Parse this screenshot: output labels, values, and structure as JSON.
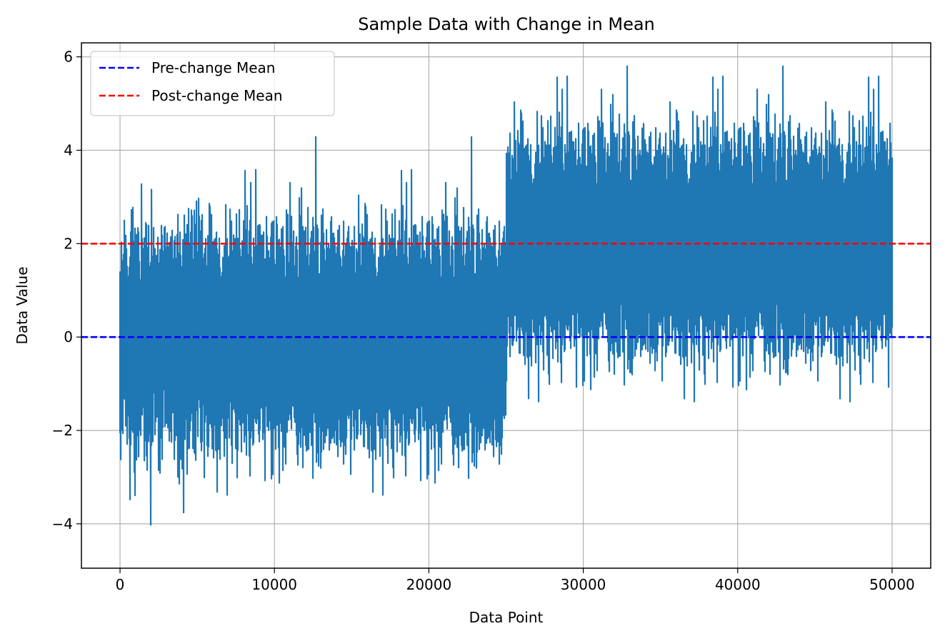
{
  "chart_data": {
    "type": "line",
    "title": "Sample Data with Change in Mean",
    "xlabel": "Data Point",
    "ylabel": "Data Value",
    "xlim": [
      -2500,
      52500
    ],
    "ylim": [
      -4.95,
      6.3
    ],
    "xticks": [
      0,
      10000,
      20000,
      30000,
      40000,
      50000
    ],
    "xtick_labels": [
      "0",
      "10000",
      "20000",
      "30000",
      "40000",
      "50000"
    ],
    "yticks": [
      -4,
      -2,
      0,
      2,
      4,
      6
    ],
    "ytick_labels": [
      "−4",
      "−2",
      "0",
      "2",
      "4",
      "6"
    ],
    "grid": true,
    "legend_position": "upper-left",
    "series": [
      {
        "name": "",
        "kind": "noisy-line",
        "color": "#1f77b4",
        "n_points": 50000,
        "change_point": 25000,
        "segments": [
          {
            "x_start": 0,
            "x_end": 25000,
            "mean": 0,
            "std": 1
          },
          {
            "x_start": 25000,
            "x_end": 50000,
            "mean": 2,
            "std": 1
          }
        ],
        "x_range": [
          0,
          49999
        ],
        "y_min": -4.45,
        "y_max": 5.8
      },
      {
        "name": "Pre-change Mean",
        "kind": "hline",
        "y": 0,
        "color": "#0000ff",
        "style": "dashed"
      },
      {
        "name": "Post-change Mean",
        "kind": "hline",
        "y": 2,
        "color": "#ff0000",
        "style": "dashed"
      }
    ]
  }
}
